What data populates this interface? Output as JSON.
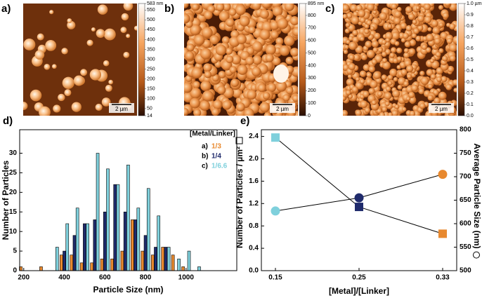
{
  "afm_images": [
    {
      "label": "a)",
      "scale_bar": "2 µm",
      "colorbar": {
        "range": [
          14,
          583
        ],
        "ticks": [
          {
            "value": 583,
            "label": "583 nm"
          },
          550,
          500,
          450,
          400,
          350,
          300,
          250,
          200,
          150,
          100,
          50,
          14
        ]
      }
    },
    {
      "label": "b)",
      "scale_bar": "2 µm",
      "colorbar": {
        "range": [
          0,
          895
        ],
        "ticks": [
          {
            "value": 895,
            "label": "895 nm"
          },
          800,
          700,
          600,
          500,
          400,
          300,
          200,
          100,
          0
        ]
      }
    },
    {
      "label": "c)",
      "scale_bar": "2 µm",
      "colorbar": {
        "range": [
          0,
          1
        ],
        "ticks": [
          {
            "value": 1,
            "label": "1.0 µm"
          },
          0.9,
          0.8,
          0.7,
          0.6,
          0.5,
          0.4,
          0.3,
          0.2,
          0.1,
          {
            "value": 0,
            "label": "0.0"
          }
        ]
      }
    }
  ],
  "chart_data": [
    {
      "type": "bar",
      "panel_label": "d)",
      "xlabel": "Particle Size (nm)",
      "ylabel": "Number of Particles",
      "legend_title": "[Metal/Linker]",
      "x": [
        200,
        250,
        300,
        350,
        400,
        450,
        500,
        550,
        600,
        650,
        700,
        750,
        800,
        850,
        900,
        950,
        1000,
        1050
      ],
      "xlim": [
        180,
        1250
      ],
      "xticks": [
        200,
        400,
        600,
        800,
        1000
      ],
      "ylim": [
        0,
        36
      ],
      "yticks": [
        0,
        5,
        10,
        15,
        20,
        25,
        30
      ],
      "series": [
        {
          "name": "1/3",
          "label_prefix": "a)",
          "color": "#e8892f",
          "values": [
            1,
            null,
            1,
            null,
            4,
            4,
            2,
            2,
            3,
            3,
            5,
            13,
            5,
            4,
            6,
            4,
            1,
            null
          ]
        },
        {
          "name": "1/4",
          "label_prefix": "b)",
          "color": "#1f2a6b",
          "values": [
            null,
            null,
            null,
            null,
            5,
            9,
            12,
            13,
            15,
            22,
            15,
            13,
            9,
            6,
            6,
            null,
            null,
            null
          ]
        },
        {
          "name": "1/6.6",
          "label_prefix": "c)",
          "color": "#7fd0dc",
          "values": [
            null,
            null,
            null,
            6,
            12,
            16,
            12,
            30,
            26,
            22,
            27,
            16,
            21,
            14,
            6,
            3,
            5,
            1
          ]
        }
      ]
    },
    {
      "type": "line",
      "panel_label": "e)",
      "xlabel": "[Metal]/[Linker]",
      "ylabel": "Number of Particles / µm²",
      "y2label": "Average Particle Size (nm)",
      "categories": [
        "0.15",
        "0.25",
        "0.33"
      ],
      "ylim": [
        0,
        2.52
      ],
      "yticks": [
        {
          "value": 0,
          "label": "0.0"
        },
        0.4,
        0.8,
        1.2,
        1.6,
        {
          "value": 2,
          "label": "2.0"
        },
        2.4
      ],
      "y2lim": [
        500,
        800
      ],
      "y2ticks": [
        500,
        550,
        600,
        650,
        700,
        750,
        800
      ],
      "series": [
        {
          "marker": "square",
          "colors": [
            "#7fd0dc",
            "#1f2a6b",
            "#e8892f"
          ],
          "values": [
            2.38,
            1.14,
            0.66
          ]
        },
        {
          "marker": "circle",
          "axis": "y2",
          "colors": [
            "#7fd0dc",
            "#1f2a6b",
            "#e8892f"
          ],
          "values": [
            627,
            655,
            705
          ]
        }
      ]
    }
  ]
}
